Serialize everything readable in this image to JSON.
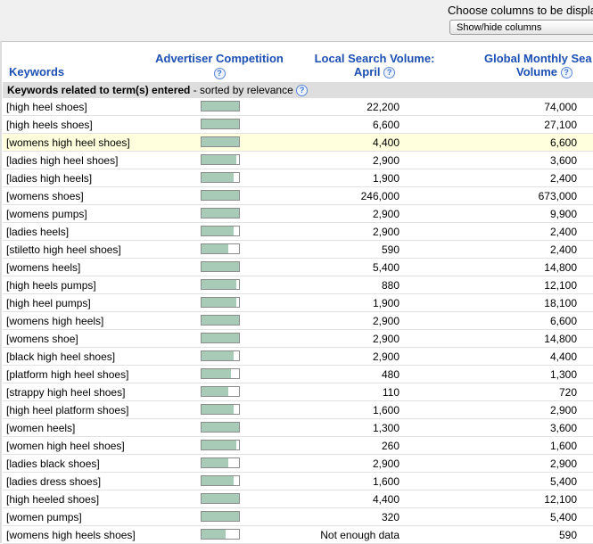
{
  "top": {
    "choose_text": "Choose columns to be displa",
    "show_hide_label": "Show/hide columns"
  },
  "headers": {
    "keywords": "Keywords",
    "competition": "Advertiser Competition",
    "local_line1": "Local Search Volume:",
    "local_line2": "April",
    "global_line1": "Global Monthly Sea",
    "global_line2": "Volume",
    "help_glyph": "?"
  },
  "group": {
    "title": "Keywords related to term(s) entered",
    "suffix": " - sorted by relevance"
  },
  "rows": [
    {
      "keyword": "[high heel shoes]",
      "competition": 1.0,
      "local": "22,200",
      "global": "74,000"
    },
    {
      "keyword": "[high heels shoes]",
      "competition": 1.0,
      "local": "6,600",
      "global": "27,100"
    },
    {
      "keyword": "[womens high heel shoes]",
      "competition": 1.0,
      "local": "4,400",
      "global": "6,600",
      "highlight": true
    },
    {
      "keyword": "[ladies high heel shoes]",
      "competition": 0.93,
      "local": "2,900",
      "global": "3,600"
    },
    {
      "keyword": "[ladies high heels]",
      "competition": 0.86,
      "local": "1,900",
      "global": "2,400"
    },
    {
      "keyword": "[womens shoes]",
      "competition": 1.0,
      "local": "246,000",
      "global": "673,000"
    },
    {
      "keyword": "[womens pumps]",
      "competition": 1.0,
      "local": "2,900",
      "global": "9,900"
    },
    {
      "keyword": "[ladies heels]",
      "competition": 0.86,
      "local": "2,900",
      "global": "2,400"
    },
    {
      "keyword": "[stiletto high heel shoes]",
      "competition": 0.71,
      "local": "590",
      "global": "2,400"
    },
    {
      "keyword": "[womens heels]",
      "competition": 1.0,
      "local": "5,400",
      "global": "14,800"
    },
    {
      "keyword": "[high heels pumps]",
      "competition": 0.93,
      "local": "880",
      "global": "12,100"
    },
    {
      "keyword": "[high heel pumps]",
      "competition": 0.93,
      "local": "1,900",
      "global": "18,100"
    },
    {
      "keyword": "[womens high heels]",
      "competition": 1.0,
      "local": "2,900",
      "global": "6,600"
    },
    {
      "keyword": "[womens shoe]",
      "competition": 1.0,
      "local": "2,900",
      "global": "14,800"
    },
    {
      "keyword": "[black high heel shoes]",
      "competition": 0.86,
      "local": "2,900",
      "global": "4,400"
    },
    {
      "keyword": "[platform high heel shoes]",
      "competition": 0.79,
      "local": "480",
      "global": "1,300"
    },
    {
      "keyword": "[strappy high heel shoes]",
      "competition": 0.71,
      "local": "110",
      "global": "720"
    },
    {
      "keyword": "[high heel platform shoes]",
      "competition": 0.86,
      "local": "1,600",
      "global": "2,900"
    },
    {
      "keyword": "[women heels]",
      "competition": 1.0,
      "local": "1,300",
      "global": "3,600"
    },
    {
      "keyword": "[women high heel shoes]",
      "competition": 0.93,
      "local": "260",
      "global": "1,600"
    },
    {
      "keyword": "[ladies black shoes]",
      "competition": 0.71,
      "local": "2,900",
      "global": "2,900"
    },
    {
      "keyword": "[ladies dress shoes]",
      "competition": 0.86,
      "local": "1,600",
      "global": "5,400"
    },
    {
      "keyword": "[high heeled shoes]",
      "competition": 1.0,
      "local": "4,400",
      "global": "12,100"
    },
    {
      "keyword": "[women pumps]",
      "competition": 1.0,
      "local": "320",
      "global": "5,400"
    },
    {
      "keyword": "[womens high heels shoes]",
      "competition": 0.64,
      "local": "Not enough data",
      "global": "590"
    }
  ],
  "colors": {
    "header_blue": "#1c4fb3",
    "bar_fill": "#a8cbb8",
    "highlight_row": "#ffffdd"
  }
}
